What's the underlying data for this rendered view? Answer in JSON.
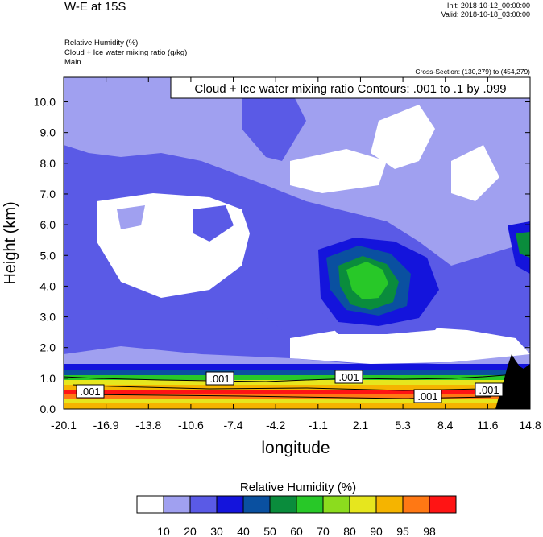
{
  "header": {
    "title": "W-E at 15S",
    "init": "Init: 2018-10-12_00:00:00",
    "valid": "Valid: 2018-10-18_03:00:00",
    "fields": [
      "Relative Humidity   (%)",
      "Cloud + Ice water mixing ratio   (g/kg)",
      "Main"
    ],
    "cross_section": "Cross-Section: (130,279) to (454,279)"
  },
  "chart_data": {
    "type": "heatmap",
    "title": "Cloud + Ice water mixing ratio Contours: .001 to .1 by .099",
    "xlabel": "longitude",
    "ylabel": "Height (km)",
    "x_ticks": [
      "-20.1",
      "-16.9",
      "-13.8",
      "-10.6",
      "-7.4",
      "-4.2",
      "-1.1",
      "2.1",
      "5.3",
      "8.4",
      "11.6",
      "14.8"
    ],
    "y_ticks": [
      "0.0",
      "1.0",
      "2.0",
      "3.0",
      "4.0",
      "5.0",
      "6.0",
      "7.0",
      "8.0",
      "9.0",
      "10.0"
    ],
    "xlim": [
      -20.1,
      14.8
    ],
    "ylim": [
      0,
      10.8
    ],
    "colorbar": {
      "title": "Relative Humidity  (%)",
      "levels": [
        "10",
        "20",
        "30",
        "40",
        "50",
        "60",
        "70",
        "80",
        "90",
        "95",
        "98"
      ],
      "colors": [
        "#ffffff",
        "#a0a0f0",
        "#5a5ae6",
        "#1414dc",
        "#0a50a0",
        "#0a8c3c",
        "#28c828",
        "#8cdc1e",
        "#e6e61e",
        "#f5b400",
        "#ff7814",
        "#ff1414"
      ]
    },
    "contour_labels": [
      ".001",
      ".001",
      ".001",
      ".001",
      ".001"
    ],
    "terrain_color": "#000000"
  }
}
